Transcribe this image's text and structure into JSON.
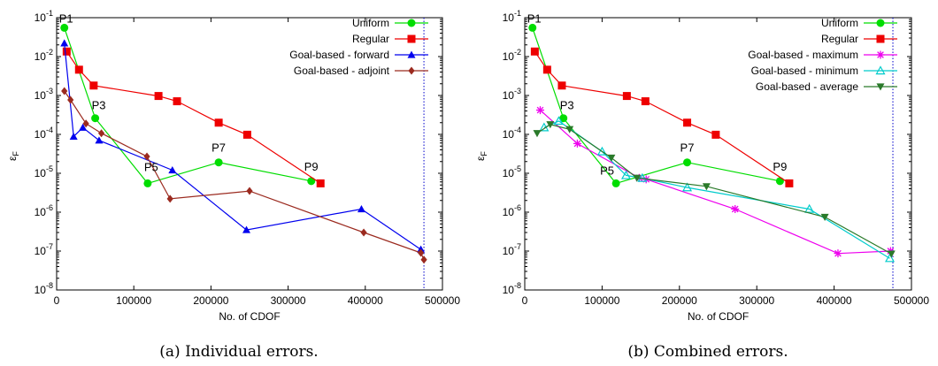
{
  "chart_data": [
    {
      "type": "line",
      "caption": "(a) Individual errors.",
      "xlabel": "No. of CDOF",
      "ylabel": "ε",
      "ylabel_sub": "F",
      "xscale": "linear",
      "yscale": "log",
      "xlim": [
        0,
        500000
      ],
      "ylim": [
        1e-08,
        0.1
      ],
      "grid": false,
      "legend_position": "top-right",
      "x_ticks": [
        "0",
        "100000",
        "200000",
        "300000",
        "400000",
        "500000"
      ],
      "x_tick_values": [
        0,
        100000,
        200000,
        300000,
        400000,
        500000
      ],
      "y_tick_exponents": [
        -8,
        -7,
        -6,
        -5,
        -4,
        -3,
        -2,
        -1
      ],
      "y_tick_base": "10",
      "vline_x": 476000,
      "vline_color": "#0000cc",
      "series": [
        {
          "name": "Uniform",
          "color": "#00dd00",
          "marker": "circle",
          "x": [
            10000,
            50000,
            118000,
            210000,
            330000
          ],
          "y": [
            0.055,
            0.00026,
            5.5e-06,
            1.9e-05,
            6.3e-06
          ]
        },
        {
          "name": "Regular",
          "color": "#ee0000",
          "marker": "square",
          "x": [
            13000,
            29000,
            48000,
            132000,
            156000,
            210000,
            247000,
            342000
          ],
          "y": [
            0.0135,
            0.0046,
            0.0018,
            0.00097,
            0.00071,
            0.0002,
            9.8e-05,
            5.5e-06
          ]
        },
        {
          "name": "Goal-based - forward",
          "color": "#0000ee",
          "marker": "triangle-up",
          "x": [
            10000,
            22000,
            34000,
            55000,
            150000,
            246000,
            395000,
            472000
          ],
          "y": [
            0.022,
            8.8e-05,
            0.00015,
            7e-05,
            1.2e-05,
            3.5e-07,
            1.2e-06,
            1.1e-07
          ]
        },
        {
          "name": "Goal-based - adjoint",
          "color": "#9b2a1f",
          "marker": "diamond",
          "x": [
            10000,
            18000,
            38000,
            58000,
            117000,
            147000,
            250000,
            398000,
            472000,
            476000
          ],
          "y": [
            0.0013,
            0.00077,
            0.00019,
            0.000107,
            2.7e-05,
            2.2e-06,
            3.5e-06,
            3e-07,
            9e-08,
            6e-08
          ]
        }
      ],
      "annotations": [
        {
          "text": "P1",
          "x": 10000,
          "y": 0.055
        },
        {
          "text": "P3",
          "x": 50000,
          "y": 0.00026
        },
        {
          "text": "P5",
          "x": 118000,
          "y": 5.5e-06
        },
        {
          "text": "P7",
          "x": 210000,
          "y": 1.9e-05
        },
        {
          "text": "P9",
          "x": 330000,
          "y": 6.3e-06
        }
      ]
    },
    {
      "type": "line",
      "caption": "(b) Combined errors.",
      "xlabel": "No. of CDOF",
      "ylabel": "ε",
      "ylabel_sub": "F",
      "xscale": "linear",
      "yscale": "log",
      "xlim": [
        0,
        500000
      ],
      "ylim": [
        1e-08,
        0.1
      ],
      "grid": false,
      "legend_position": "top-right",
      "x_ticks": [
        "0",
        "100000",
        "200000",
        "300000",
        "400000",
        "500000"
      ],
      "x_tick_values": [
        0,
        100000,
        200000,
        300000,
        400000,
        500000
      ],
      "y_tick_exponents": [
        -8,
        -7,
        -6,
        -5,
        -4,
        -3,
        -2,
        -1
      ],
      "y_tick_base": "10",
      "vline_x": 476000,
      "vline_color": "#0000cc",
      "series": [
        {
          "name": "Uniform",
          "color": "#00dd00",
          "marker": "circle",
          "x": [
            10000,
            50000,
            118000,
            210000,
            330000
          ],
          "y": [
            0.055,
            0.00026,
            5.5e-06,
            1.9e-05,
            6.3e-06
          ]
        },
        {
          "name": "Regular",
          "color": "#ee0000",
          "marker": "square",
          "x": [
            13000,
            29000,
            48000,
            132000,
            156000,
            210000,
            247000,
            342000
          ],
          "y": [
            0.0135,
            0.0046,
            0.0018,
            0.00097,
            0.00071,
            0.0002,
            9.8e-05,
            5.5e-06
          ]
        },
        {
          "name": "Goal-based - maximum",
          "color": "#ee00ee",
          "marker": "star",
          "x": [
            20000,
            68000,
            148000,
            157000,
            272000,
            405000,
            473000
          ],
          "y": [
            0.00042,
            5.8e-05,
            7.6e-06,
            7e-06,
            1.2e-06,
            8.7e-08,
            1e-07
          ]
        },
        {
          "name": "Goal-based - minimum",
          "color": "#00cccc",
          "marker": "triangle-open",
          "x": [
            25000,
            44000,
            100000,
            131000,
            152000,
            210000,
            368000,
            472000
          ],
          "y": [
            0.00015,
            0.00022,
            3.6e-05,
            8.8e-06,
            7.5e-06,
            4.3e-06,
            1.2e-06,
            6.5e-08
          ]
        },
        {
          "name": "Goal-based - average",
          "color": "#2a7a2a",
          "marker": "triangle-down",
          "x": [
            16000,
            33000,
            58000,
            112000,
            145000,
            235000,
            388000,
            474000
          ],
          "y": [
            0.000107,
            0.00018,
            0.000135,
            2.5e-05,
            7.6e-06,
            4.6e-06,
            7.5e-07,
            8.5e-08
          ]
        }
      ],
      "annotations": [
        {
          "text": "P1",
          "x": 10000,
          "y": 0.055
        },
        {
          "text": "P3",
          "x": 50000,
          "y": 0.00026
        },
        {
          "text": "P5",
          "x": 118000,
          "y": 5.5e-06
        },
        {
          "text": "P7",
          "x": 210000,
          "y": 1.9e-05
        },
        {
          "text": "P9",
          "x": 330000,
          "y": 6.3e-06
        }
      ]
    }
  ]
}
